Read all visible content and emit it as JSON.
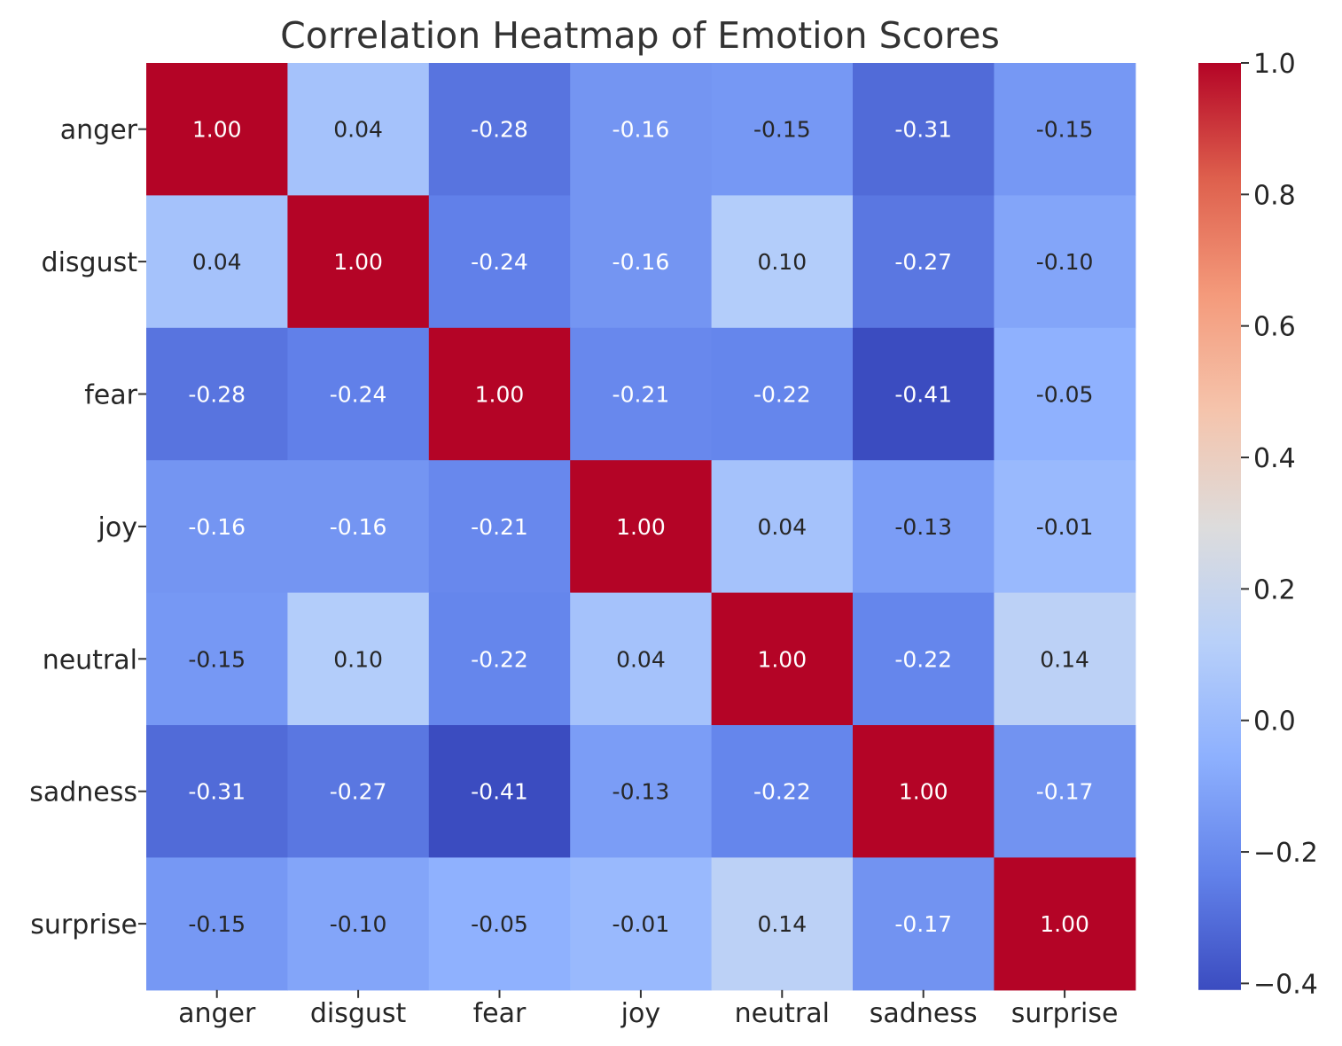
{
  "chart_data": {
    "type": "heatmap",
    "title": "Correlation Heatmap of Emotion Scores",
    "xlabel": "",
    "ylabel": "",
    "rows": [
      "anger",
      "disgust",
      "fear",
      "joy",
      "neutral",
      "sadness",
      "surprise"
    ],
    "columns": [
      "anger",
      "disgust",
      "fear",
      "joy",
      "neutral",
      "sadness",
      "surprise"
    ],
    "values": [
      [
        1.0,
        0.04,
        -0.28,
        -0.16,
        -0.15,
        -0.31,
        -0.15
      ],
      [
        0.04,
        1.0,
        -0.24,
        -0.16,
        0.1,
        -0.27,
        -0.1
      ],
      [
        -0.28,
        -0.24,
        1.0,
        -0.21,
        -0.22,
        -0.41,
        -0.05
      ],
      [
        -0.16,
        -0.16,
        -0.21,
        1.0,
        0.04,
        -0.13,
        -0.01
      ],
      [
        -0.15,
        0.1,
        -0.22,
        0.04,
        1.0,
        -0.22,
        0.14
      ],
      [
        -0.31,
        -0.27,
        -0.41,
        -0.13,
        -0.22,
        1.0,
        -0.17
      ],
      [
        -0.15,
        -0.1,
        -0.05,
        -0.01,
        0.14,
        -0.17,
        1.0
      ]
    ],
    "value_format": "0.00",
    "colormap": "coolwarm",
    "color_range": [
      -0.41,
      1.0
    ],
    "colorbar_ticks": [
      "1.0",
      "0.8",
      "0.6",
      "0.4",
      "0.2",
      "0.0",
      "−0.2",
      "−0.4"
    ],
    "colorbar_tick_values": [
      1.0,
      0.8,
      0.6,
      0.4,
      0.2,
      0.0,
      -0.2,
      -0.4
    ],
    "colorbar_stops": [
      "#3b4cc0",
      "#6282ea",
      "#8db0fe",
      "#b8d0f9",
      "#dddcdc",
      "#f5c4ac",
      "#f49a7b",
      "#de604d",
      "#b40426"
    ],
    "legend": "colorbar-right",
    "grid": false
  }
}
